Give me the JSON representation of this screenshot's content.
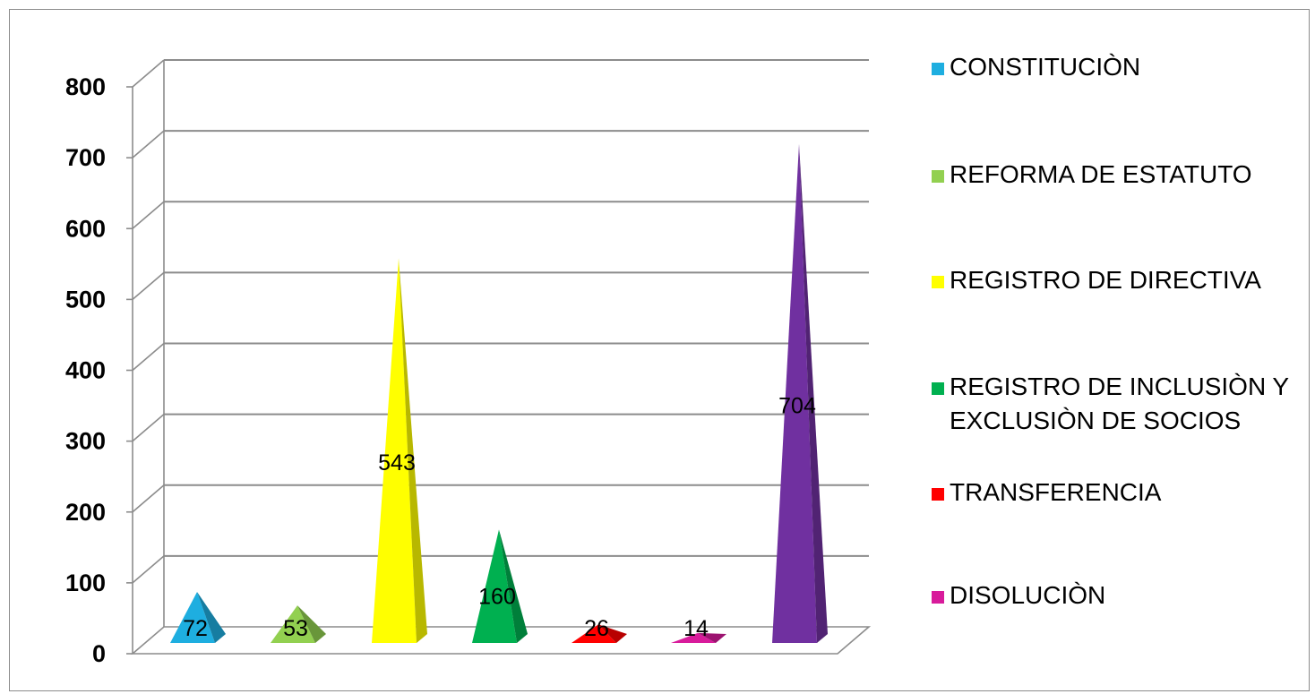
{
  "chart_data": {
    "type": "bar",
    "style": "3d-pyramid",
    "y_ticks": [
      "0",
      "100",
      "200",
      "300",
      "400",
      "500",
      "600",
      "700",
      "800"
    ],
    "ylim": [
      0,
      800
    ],
    "grid": true,
    "legend_position": "right",
    "series": [
      {
        "name": "CONSTITUCIÒN",
        "value": 72,
        "label": "72",
        "color": "#1EAEE0"
      },
      {
        "name": "REFORMA DE ESTATUTO",
        "value": 53,
        "label": "53",
        "color": "#92D050"
      },
      {
        "name": "REGISTRO DE DIRECTIVA",
        "value": 543,
        "label": "543",
        "color": "#FFFF00"
      },
      {
        "name": "REGISTRO DE INCLUSIÒN  Y\nEXCLUSIÒN DE SOCIOS",
        "value": 160,
        "label": "160",
        "color": "#00B050"
      },
      {
        "name": "TRANSFERENCIA",
        "value": 26,
        "label": "26",
        "color": "#FF0000"
      },
      {
        "name": "DISOLUCIÒN",
        "value": 14,
        "label": "14",
        "color": "#D81B9B"
      },
      {
        "name": "",
        "value": 704,
        "label": "704",
        "color": "#7030A0"
      }
    ]
  }
}
